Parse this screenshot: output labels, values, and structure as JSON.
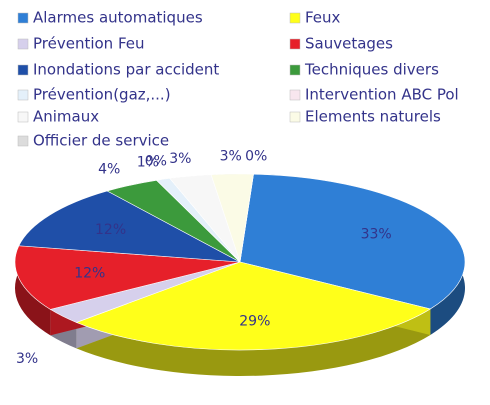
{
  "chart_data": {
    "type": "pie",
    "series": [
      {
        "name": "Alarmes automatiques",
        "color": "#2f7fd6",
        "values": [
          33
        ],
        "value_labels": [
          "33%"
        ]
      },
      {
        "name": "Feux",
        "color": "#ffff1a",
        "values": [
          29
        ],
        "value_labels": [
          "29%"
        ]
      },
      {
        "name": "Prévention Feu",
        "color": "#d6d0ec",
        "values": [
          3
        ],
        "value_labels": [
          "3%"
        ]
      },
      {
        "name": "Sauvetages",
        "color": "#e6202a",
        "values": [
          12
        ],
        "value_labels": [
          "12%"
        ]
      },
      {
        "name": "Inondations par accident",
        "color": "#1f4fa8",
        "values": [
          12
        ],
        "value_labels": [
          "12%"
        ]
      },
      {
        "name": "Techniques divers",
        "color": "#3c9a3c",
        "values": [
          4
        ],
        "value_labels": [
          "4%"
        ]
      },
      {
        "name": "Prévention(gaz,...)",
        "color": "#e4f0fa",
        "values": [
          1
        ],
        "value_labels": [
          "1%"
        ]
      },
      {
        "name": "Intervention ABC Pol",
        "color": "#f8e6ee",
        "values": [
          0
        ],
        "value_labels": [
          "0%"
        ]
      },
      {
        "name": "Animaux",
        "color": "#f7f7f7",
        "values": [
          3
        ],
        "value_labels": [
          "3%"
        ]
      },
      {
        "name": "Elements naturels",
        "color": "#fbfbe6",
        "values": [
          3
        ],
        "value_labels": [
          "3%"
        ]
      },
      {
        "name": "Officier de service",
        "color": "#dcdcdc",
        "values": [
          0
        ],
        "value_labels": [
          "0%"
        ]
      }
    ]
  }
}
